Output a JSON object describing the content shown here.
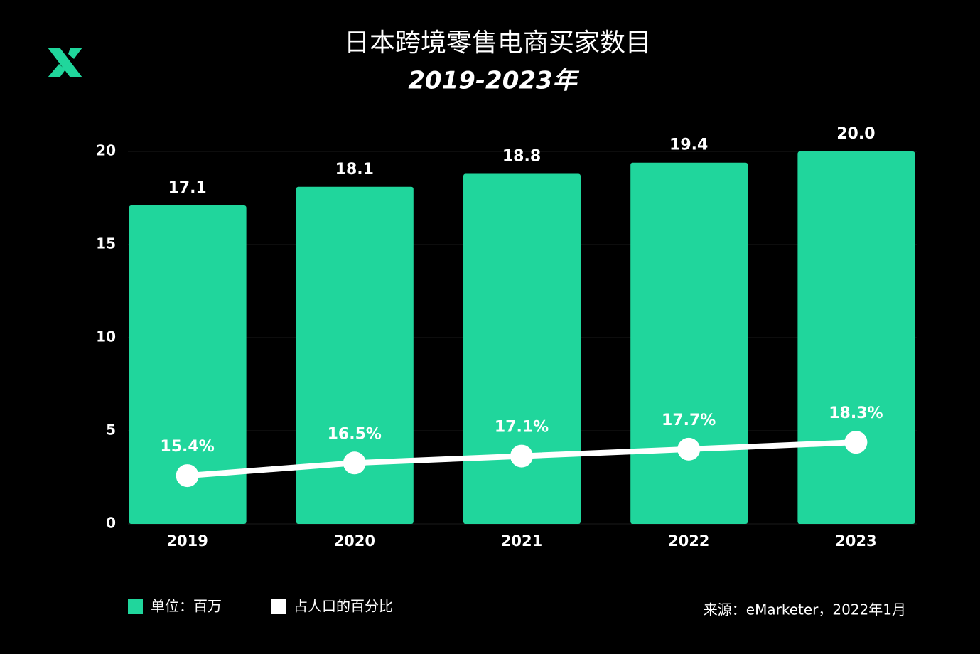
{
  "chart_data": {
    "type": "bar_line",
    "title": "日本跨境零售电商买家数目",
    "subtitle": "2019-2023年",
    "categories": [
      "2019",
      "2020",
      "2021",
      "2022",
      "2023"
    ],
    "series": [
      {
        "name": "单位：百万",
        "color": "#20d69c",
        "type": "bar",
        "values": [
          17.1,
          18.1,
          18.8,
          19.4,
          20.0
        ],
        "value_labels": [
          "17.1",
          "18.1",
          "18.8",
          "19.4",
          "20.0"
        ]
      },
      {
        "name": "占人口的百分比",
        "color": "#ffffff",
        "type": "line",
        "axis": "y2",
        "values": [
          15.4,
          16.5,
          17.1,
          17.7,
          18.3
        ],
        "value_labels": [
          "15.4%",
          "16.5%",
          "17.1%",
          "17.7%",
          "18.3%"
        ]
      }
    ],
    "ylim": [
      0,
      20
    ],
    "yticks": [
      0,
      5,
      10,
      15,
      20
    ],
    "y2lim": [
      11.2,
      43.6
    ],
    "grid": true,
    "source": "来源：eMarketer，2022年1月"
  }
}
